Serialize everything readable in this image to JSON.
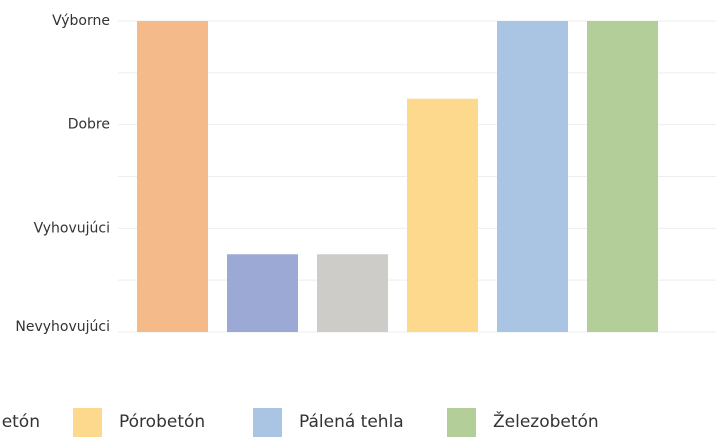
{
  "chart_data": {
    "type": "bar",
    "y_scale": "ordinal",
    "y_levels": [
      "Nevyhovujúci",
      "Vyhovujúci",
      "Dobre",
      "Výborne"
    ],
    "y_level_values": [
      0,
      1,
      2,
      3
    ],
    "ylim": [
      0,
      3
    ],
    "grid": true,
    "legend_position": "bottom",
    "series": [
      {
        "name": "",
        "value": 3,
        "color": "#F5BA8A"
      },
      {
        "name": "",
        "value": 0.75,
        "color": "#9DA9D5"
      },
      {
        "name": "",
        "value": 0.75,
        "color": "#CDCCC9"
      },
      {
        "name": "Pórobetón",
        "value": 2.25,
        "color": "#FDD98E"
      },
      {
        "name": "Pálená tehla",
        "value": 3,
        "color": "#AAC4E3"
      },
      {
        "name": "Železobetón",
        "value": 3,
        "color": "#B4CE9A"
      }
    ],
    "legend_partial_label": "etón"
  }
}
